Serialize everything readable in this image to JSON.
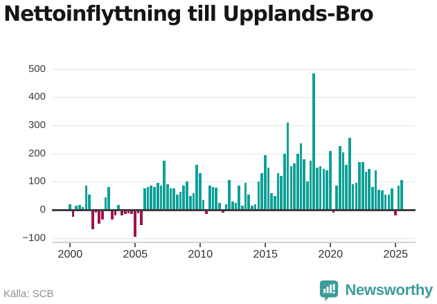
{
  "title": "Nettoinflyttning till Upplands-Bro",
  "source": "Källa: SCB",
  "brand": {
    "name": "Newsworthy"
  },
  "colors": {
    "positive_bar": "#0fa096",
    "negative_bar": "#a0124e",
    "zero_line": "#3d3d3d",
    "gridline": "#e4e4e4",
    "brand_teal": "#3d9c98",
    "title_text": "#151515",
    "axis_text": "#3c3c3c",
    "source_text": "#8f8f8f"
  },
  "chart_data": {
    "type": "bar",
    "title": "Nettoinflyttning till Upplands-Bro",
    "x_unit": "quarter",
    "start": "2000Q1",
    "end": "2025Q3",
    "ylim": [
      -100,
      500
    ],
    "grid": true,
    "legend": false,
    "y_ticks": [
      500,
      400,
      300,
      200,
      100,
      0,
      -100
    ],
    "y_tick_labels": [
      "500",
      "400",
      "300",
      "200",
      "100",
      "0",
      "−100"
    ],
    "x_tick_labels": [
      "2000",
      "2005",
      "2010",
      "2015",
      "2020",
      "2025"
    ],
    "x_tick_every_quarters": 20,
    "values": [
      20,
      -25,
      15,
      18,
      10,
      85,
      55,
      -70,
      -10,
      -50,
      -35,
      45,
      80,
      -35,
      -20,
      18,
      -20,
      -15,
      -12,
      -15,
      -95,
      -12,
      -55,
      75,
      80,
      85,
      80,
      95,
      85,
      175,
      90,
      75,
      75,
      55,
      65,
      85,
      100,
      50,
      60,
      160,
      130,
      35,
      -15,
      85,
      80,
      78,
      25,
      -10,
      20,
      105,
      30,
      25,
      85,
      15,
      95,
      55,
      15,
      20,
      100,
      130,
      195,
      150,
      60,
      50,
      130,
      120,
      200,
      310,
      155,
      165,
      200,
      235,
      180,
      100,
      175,
      485,
      150,
      155,
      145,
      140,
      210,
      -10,
      85,
      225,
      205,
      160,
      255,
      90,
      95,
      170,
      170,
      135,
      145,
      80,
      140,
      72,
      70,
      53,
      55,
      75,
      -19,
      85,
      105
    ]
  }
}
